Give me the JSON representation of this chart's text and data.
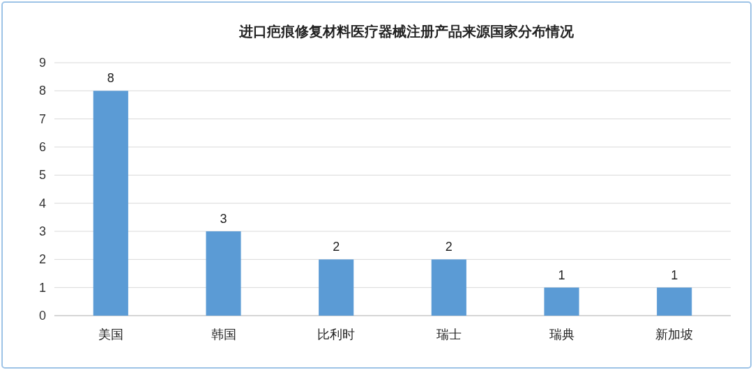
{
  "chart_data": {
    "type": "bar",
    "title": "进口疤痕修复材料医疗器械注册产品来源国家分布情况",
    "categories": [
      "美国",
      "韩国",
      "比利时",
      "瑞士",
      "瑞典",
      "新加坡"
    ],
    "values": [
      8,
      3,
      2,
      2,
      1,
      1
    ],
    "color": "#5b9bd5",
    "ylim": [
      0,
      9
    ],
    "yticks": [
      0,
      1,
      2,
      3,
      4,
      5,
      6,
      7,
      8,
      9
    ],
    "grid": "y",
    "data_labels": true
  }
}
